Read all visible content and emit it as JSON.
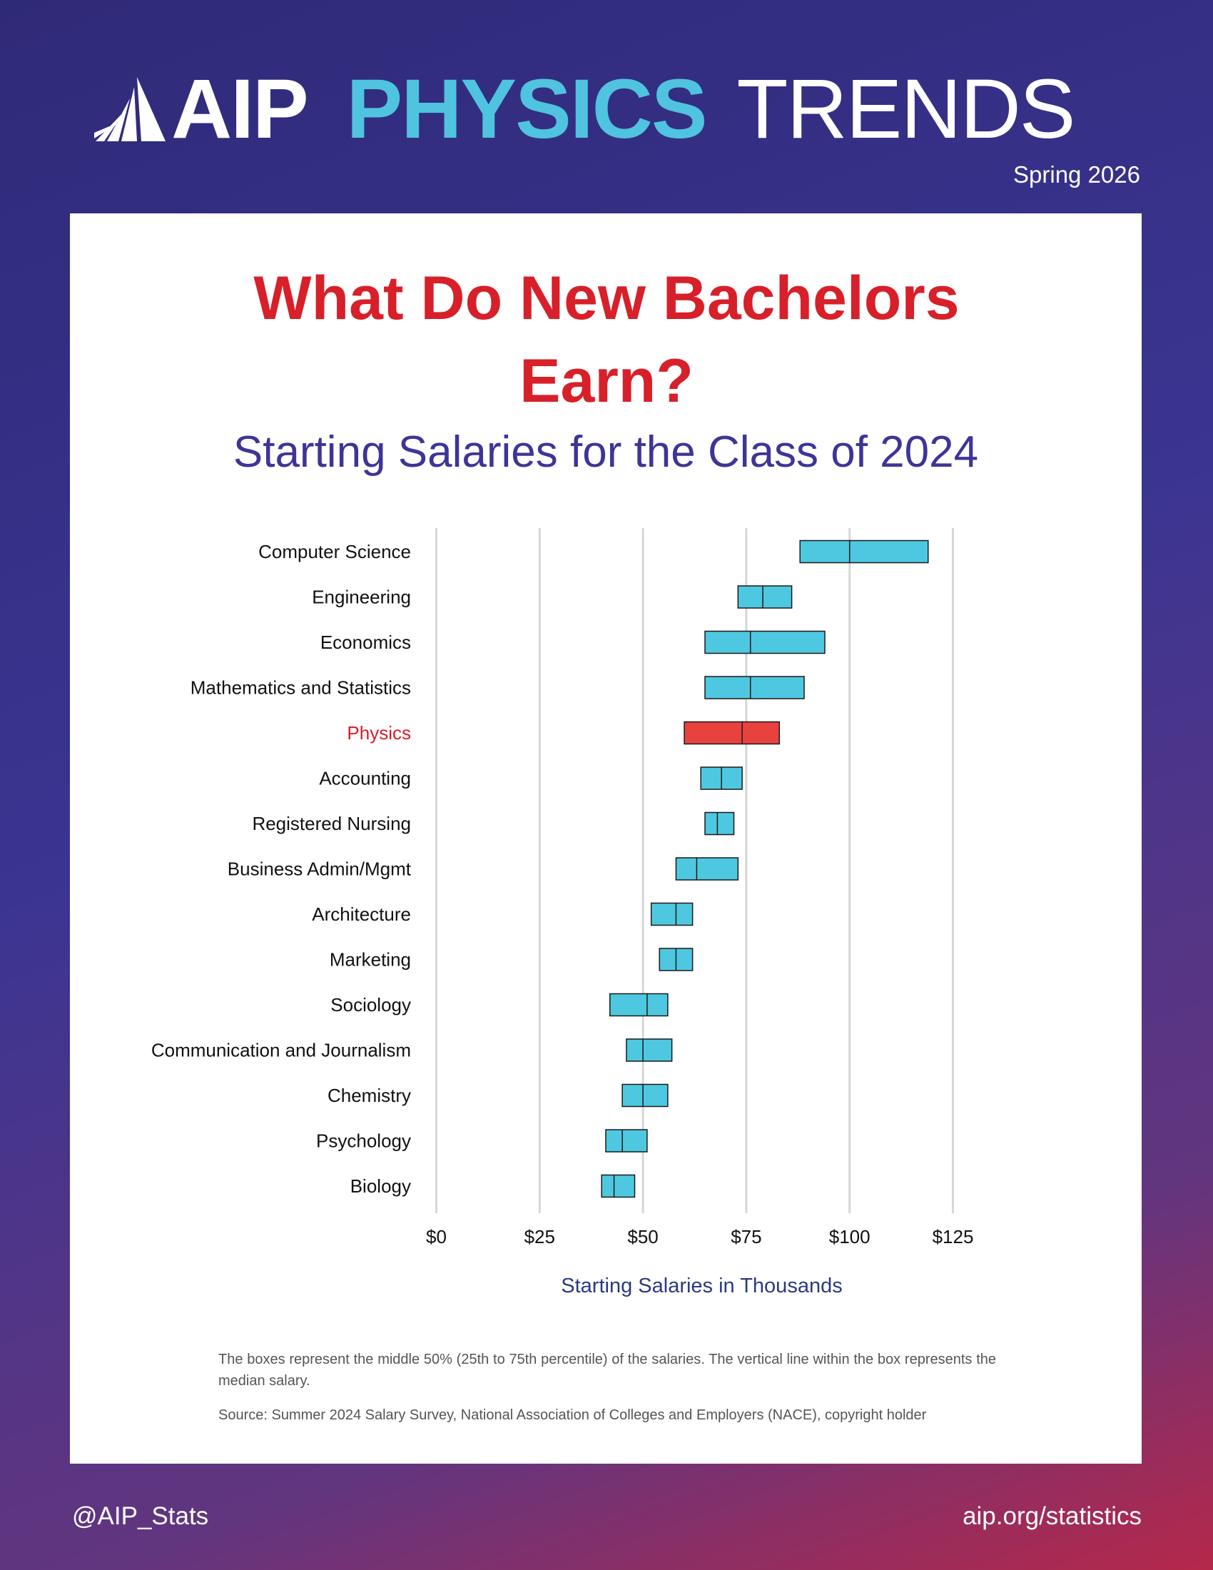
{
  "header": {
    "logo": "AIP",
    "brand_1": "PHYSICS",
    "brand_2": "TRENDS",
    "edition": "Spring 2026"
  },
  "chart_data": {
    "type": "box",
    "title": "What Do New Bachelors Earn?",
    "subtitle": "Starting Salaries for the Class of 2024",
    "xlabel": "Starting Salaries in Thousands",
    "categories": [
      "Computer Science",
      "Engineering",
      "Economics",
      "Mathematics and Statistics",
      "Physics",
      "Accounting",
      "Registered Nursing",
      "Business Admin/Mgmt",
      "Architecture",
      "Marketing",
      "Sociology",
      "Communication and Journalism",
      "Chemistry",
      "Psychology",
      "Biology"
    ],
    "q1": [
      88,
      73,
      65,
      65,
      60,
      64,
      65,
      58,
      52,
      54,
      42,
      46,
      45,
      41,
      40
    ],
    "median": [
      100,
      79,
      76,
      76,
      74,
      69,
      68,
      63,
      58,
      58,
      51,
      50,
      50,
      45,
      43
    ],
    "q3": [
      119,
      86,
      94,
      89,
      83,
      74,
      72,
      73,
      62,
      62,
      56,
      57,
      56,
      51,
      48
    ],
    "box_colors": [
      "#4ec8e0",
      "#4ec8e0",
      "#4ec8e0",
      "#4ec8e0",
      "#e8423f",
      "#4ec8e0",
      "#4ec8e0",
      "#4ec8e0",
      "#4ec8e0",
      "#4ec8e0",
      "#4ec8e0",
      "#4ec8e0",
      "#4ec8e0",
      "#4ec8e0",
      "#4ec8e0"
    ],
    "label_colors": [
      "#111111",
      "#111111",
      "#111111",
      "#111111",
      "#d7202a",
      "#111111",
      "#111111",
      "#111111",
      "#111111",
      "#111111",
      "#111111",
      "#111111",
      "#111111",
      "#111111",
      "#111111"
    ],
    "xlim": [
      0,
      125
    ],
    "xticks": [
      {
        "value": 0,
        "label": "$0"
      },
      {
        "value": 25,
        "label": "$25"
      },
      {
        "value": 50,
        "label": "$50"
      },
      {
        "value": 75,
        "label": "$75"
      },
      {
        "value": 100,
        "label": "$100"
      },
      {
        "value": 125,
        "label": "$125"
      }
    ],
    "grid": true,
    "notes": [
      "The boxes represent the middle 50% (25th to 75th percentile) of the salaries. The vertical line within the box represents the median salary.",
      "Source: Summer 2024 Salary Survey, National Association of Colleges and Employers (NACE), copyright holder"
    ]
  },
  "footer": {
    "left": "@AIP_Stats",
    "right": "aip.org/statistics"
  }
}
